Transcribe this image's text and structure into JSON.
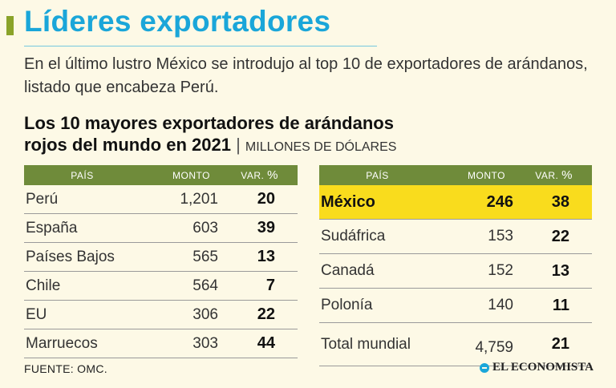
{
  "header": {
    "title": "Líderes exportadores",
    "intro": "En el último lustro México se introdujo al top 10 de exportadores de arándanos, listado que encabeza Perú.",
    "accent_color": "#8aa329",
    "title_color": "#1aa6d9"
  },
  "chart_data": {
    "type": "table",
    "title_line1": "Los 10 mayores exportadores de arándanos",
    "title_line2": "rojos del mundo en 2021",
    "unit": "MILLONES DE DÓLARES",
    "columns": [
      "PAÍS",
      "MONTO",
      "VAR. ",
      "%"
    ],
    "left_rows": [
      {
        "country": "Perú",
        "amount": "1,201",
        "var": "20"
      },
      {
        "country": "España",
        "amount": "603",
        "var": "39"
      },
      {
        "country": "Países Bajos",
        "amount": "565",
        "var": "13"
      },
      {
        "country": "Chile",
        "amount": "564",
        "var": "7"
      },
      {
        "country": "EU",
        "amount": "306",
        "var": "22"
      },
      {
        "country": "Marruecos",
        "amount": "303",
        "var": "44"
      }
    ],
    "right_rows": [
      {
        "country": "México",
        "amount": "246",
        "var": "38"
      },
      {
        "country": "Sudáfrica",
        "amount": "153",
        "var": "22"
      },
      {
        "country": "Canadá",
        "amount": "152",
        "var": "13"
      },
      {
        "country": "Polonía",
        "amount": "140",
        "var": "11"
      }
    ],
    "total": {
      "country": "Total mundial",
      "amount": "4,759",
      "var": "21"
    },
    "header_color": "#6f8b3a",
    "highlight_color": "#f9dc1d"
  },
  "footer": {
    "source": "FUENTE:  OMC.",
    "brand": "EL ECONOMISTA",
    "brand_icon": "el-economista-logo-icon"
  }
}
